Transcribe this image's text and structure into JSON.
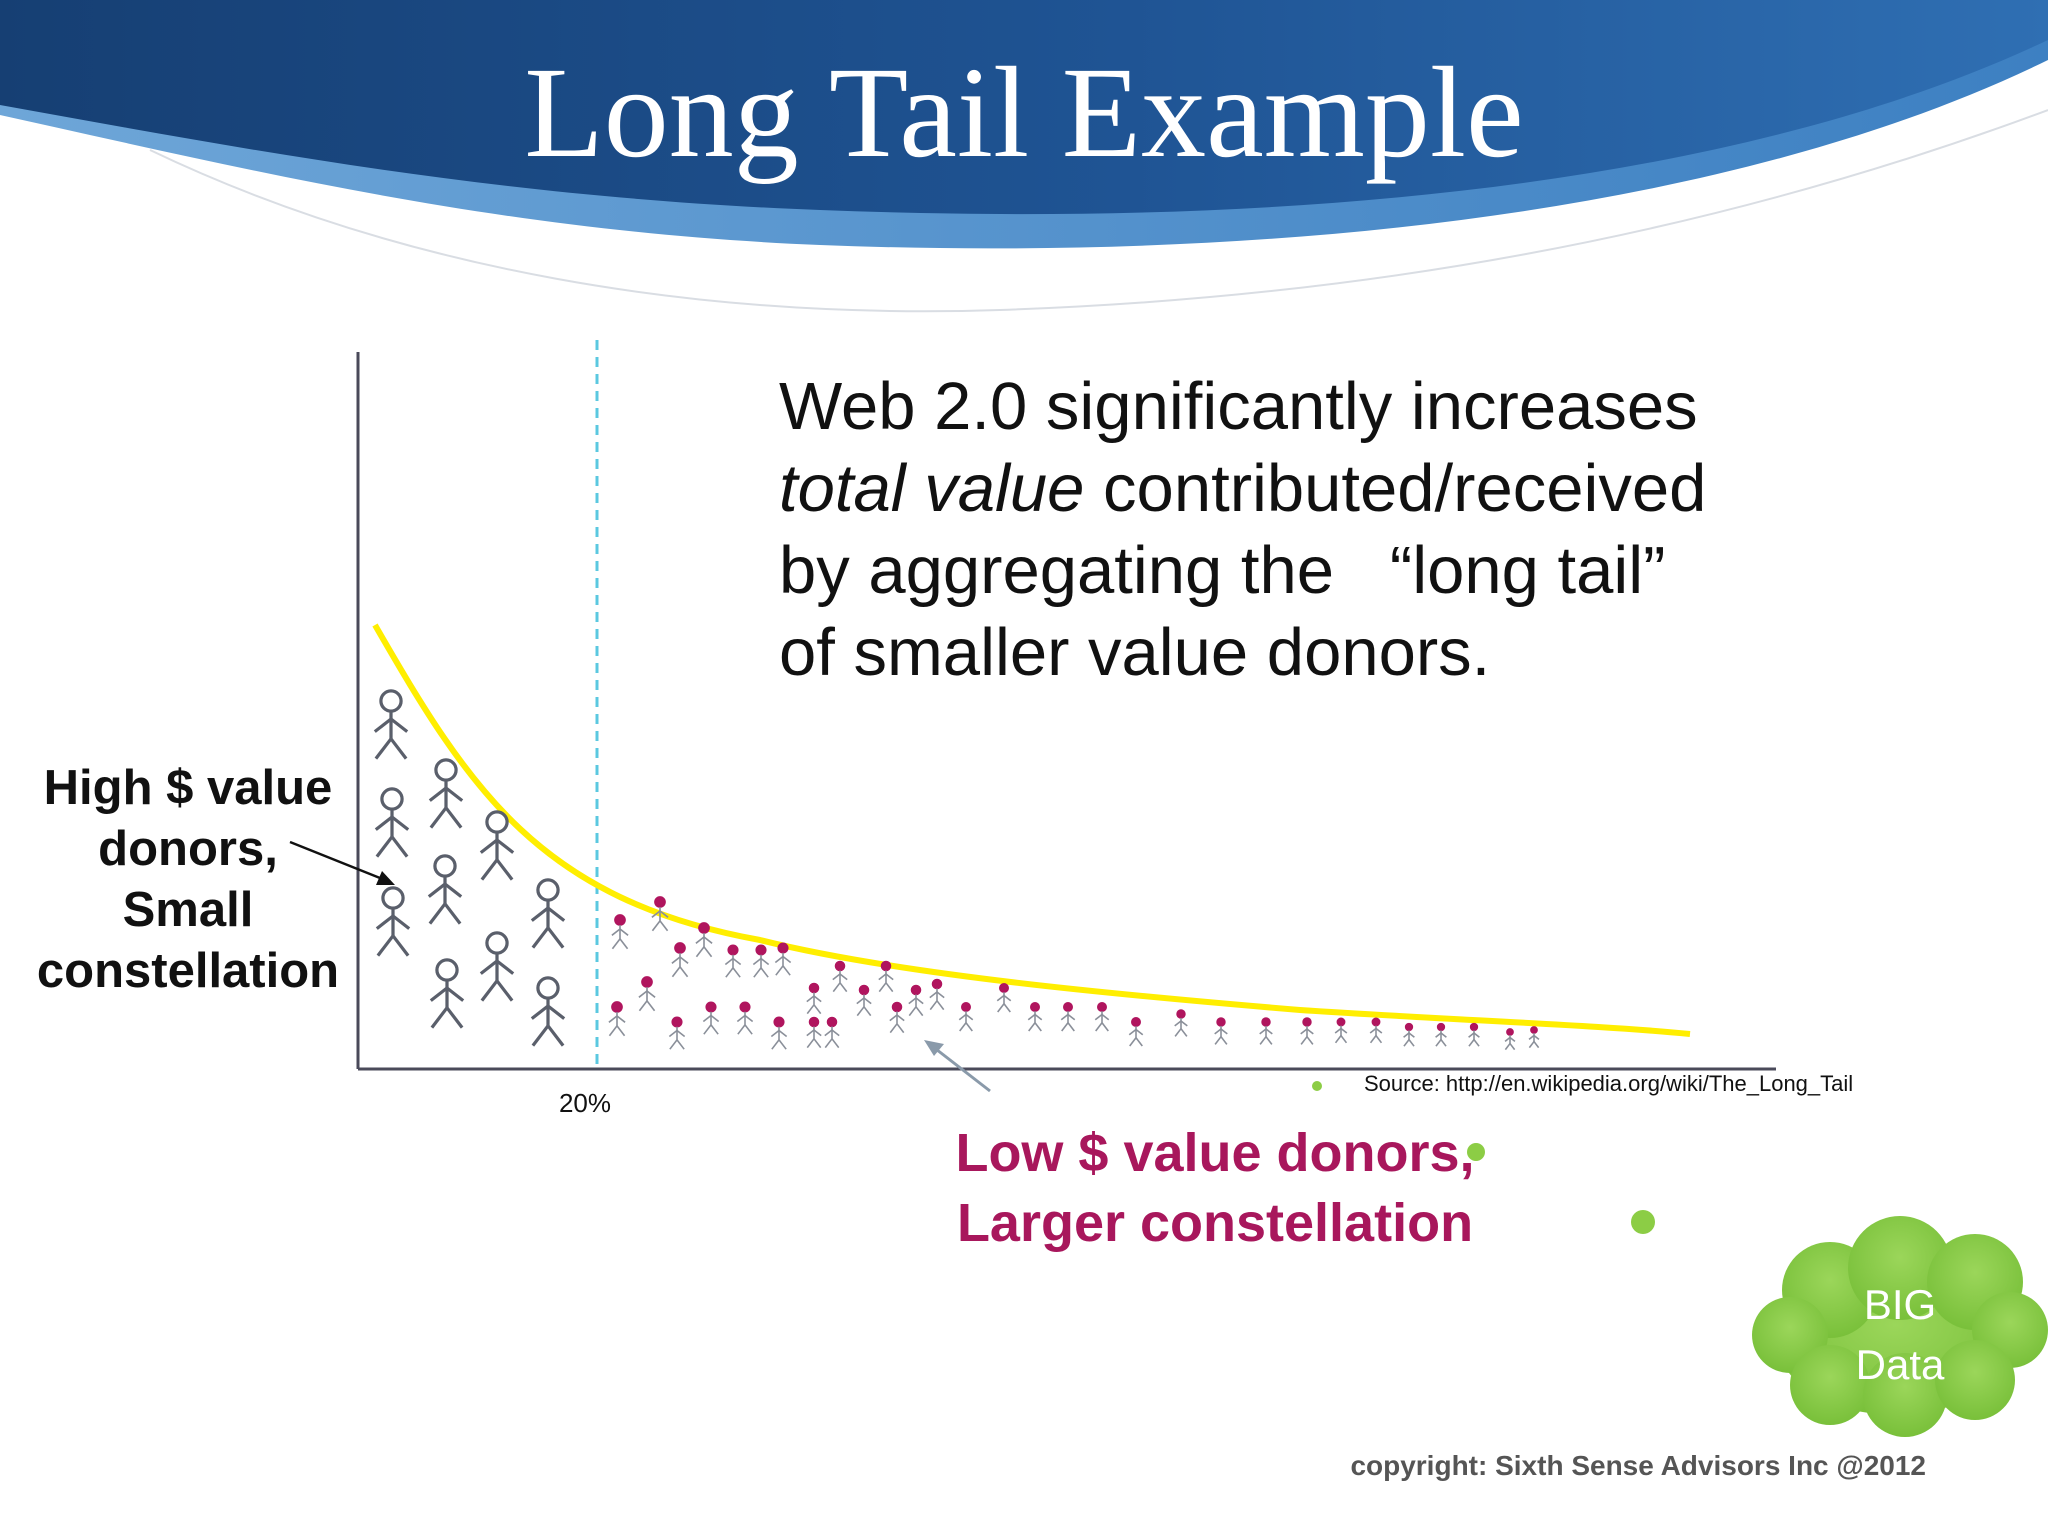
{
  "slide": {
    "title": "Long Tail Example",
    "description_lines": [
      {
        "pre": "Web 2.0 significantly increases",
        "em": "",
        "post": ""
      },
      {
        "pre": "",
        "em": "total value",
        "post": " contributed/received"
      },
      {
        "pre": "by aggregating the   “long tail”",
        "em": "",
        "post": ""
      },
      {
        "pre": "of smaller value donors.",
        "em": "",
        "post": ""
      }
    ],
    "high_label": [
      "High $ value",
      "donors,",
      "Small",
      "constellation"
    ],
    "low_label": [
      "Low $ value donors,",
      "Larger constellation"
    ],
    "percent_label": "20%",
    "source": "Source: http://en.wikipedia.org/wiki/The_Long_Tail",
    "copyright": "copyright: Sixth Sense Advisors Inc @2012",
    "badge": [
      "BIG",
      "Data"
    ]
  },
  "colors": {
    "header_dark": "#1b4a82",
    "header_light": "#4b8ec9",
    "curve": "#ffee00",
    "divider": "#5bc8e0",
    "axis": "#4a4a5a",
    "large_figure": "#5a5f6b",
    "small_figure_body": "#8a8f99",
    "small_figure_head": "#b0155e",
    "low_label": "#a8175c",
    "badge_cloud": "#8ccd45",
    "badge_dot": "#8ccd45"
  },
  "icons": {
    "large_figures": "stick-figure-icon",
    "small_figures": "stick-figure-magenta-head-icon",
    "badge": "cloud-icon"
  }
}
